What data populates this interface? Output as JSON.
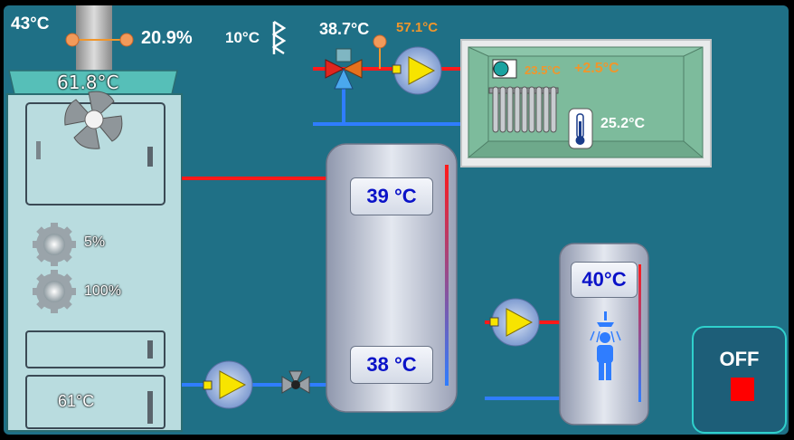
{
  "flue": {
    "temperature": "43°C",
    "oxygen": "20.9%"
  },
  "outdoor": {
    "temperature": "10°C"
  },
  "supply": {
    "temperature": "38.7°C",
    "setpoint": "57.1°C"
  },
  "boiler": {
    "temperature": "61.8°C",
    "fan_speed": "5%",
    "feeder": "100%",
    "return_temperature": "61°C"
  },
  "room": {
    "setpoint": "23.5°C",
    "delta": "+2.5°C",
    "temperature": "25.2°C"
  },
  "buffer_tank": {
    "top_temperature": "39 °C",
    "bottom_temperature": "38 °C"
  },
  "dhw_tank": {
    "temperature": "40°C"
  },
  "power_button": {
    "label": "OFF"
  },
  "colors": {
    "background": "#1f7086",
    "hot_pipe": "#ff1a1a",
    "cold_pipe": "#2f7dff",
    "boiler_body": "#b9dcdf",
    "boiler_top": "#56bfb8",
    "pump_yellow": "#f7e400",
    "off_indicator": "#ff0000",
    "room_panel": "#7dbb9c"
  },
  "icons": [
    "fan-icon",
    "gear-icon",
    "pump-icon",
    "three-way-valve-icon",
    "mixing-valve-icon",
    "radiator-icon",
    "thermometer-icon",
    "shower-icon",
    "person-icon",
    "wind-icon",
    "sensor-icon",
    "stop-icon"
  ]
}
